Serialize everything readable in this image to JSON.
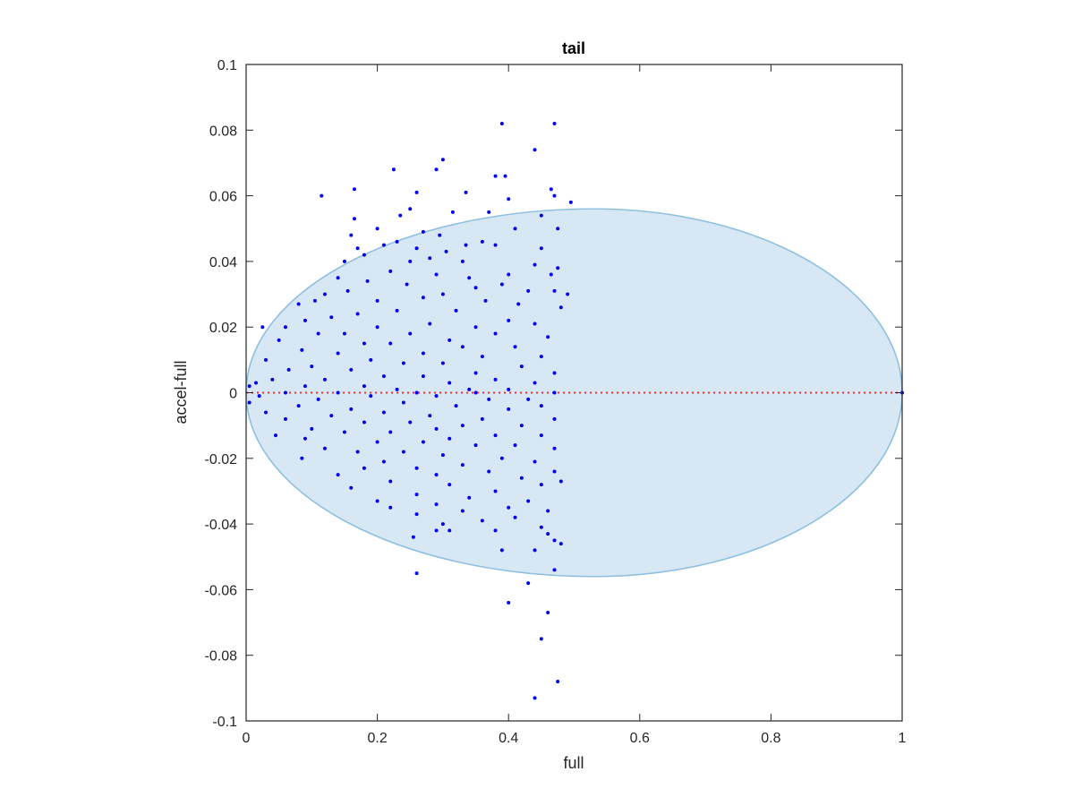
{
  "chart_data": {
    "type": "scatter",
    "title": "tail",
    "xlabel": "full",
    "ylabel": "accel-full",
    "xlim": [
      0,
      1
    ],
    "ylim": [
      -0.1,
      0.1
    ],
    "xticks": [
      "0",
      "0.2",
      "0.4",
      "0.6",
      "0.8",
      "1"
    ],
    "yticks": [
      "-0.1",
      "-0.08",
      "-0.06",
      "-0.04",
      "-0.02",
      "0",
      "0.02",
      "0.04",
      "0.06",
      "0.08",
      "0.1"
    ],
    "grid": false,
    "colors": {
      "points": "#0000ee",
      "ellipse_fill": "#d7e8f4",
      "ellipse_edge": "#8fc0e0",
      "reference_line": "#ff2a2a",
      "axes": "#262626"
    },
    "ellipse": {
      "x_range": [
        0,
        1
      ],
      "y_range": [
        -0.056,
        0.056
      ],
      "x_peak": 0.53
    },
    "reference_line": {
      "y": 0,
      "x_range": [
        0,
        1
      ],
      "style": "dotted"
    },
    "series": [
      {
        "points": [
          [
            0.39,
            0.082
          ],
          [
            0.47,
            0.082
          ],
          [
            0.44,
            0.074
          ],
          [
            0.3,
            0.071
          ],
          [
            0.29,
            0.068
          ],
          [
            0.225,
            0.068
          ],
          [
            0.38,
            0.066
          ],
          [
            0.395,
            0.066
          ],
          [
            0.165,
            0.062
          ],
          [
            0.26,
            0.061
          ],
          [
            0.465,
            0.062
          ],
          [
            0.335,
            0.061
          ],
          [
            0.47,
            0.06
          ],
          [
            0.115,
            0.06
          ],
          [
            0.4,
            0.059
          ],
          [
            0.495,
            0.058
          ],
          [
            0.25,
            0.056
          ],
          [
            0.235,
            0.054
          ],
          [
            0.37,
            0.055
          ],
          [
            0.315,
            0.055
          ],
          [
            0.165,
            0.053
          ],
          [
            0.45,
            0.054
          ],
          [
            0.2,
            0.05
          ],
          [
            0.16,
            0.048
          ],
          [
            0.475,
            0.05
          ],
          [
            0.27,
            0.049
          ],
          [
            0.41,
            0.05
          ],
          [
            0.295,
            0.048
          ],
          [
            0.17,
            0.044
          ],
          [
            0.18,
            0.042
          ],
          [
            0.38,
            0.045
          ],
          [
            0.475,
            0.038
          ],
          [
            0.44,
            0.039
          ],
          [
            0.36,
            0.046
          ],
          [
            0.335,
            0.045
          ],
          [
            0.23,
            0.046
          ],
          [
            0.305,
            0.043
          ],
          [
            0.26,
            0.044
          ],
          [
            0.21,
            0.045
          ],
          [
            0.25,
            0.04
          ],
          [
            0.33,
            0.04
          ],
          [
            0.28,
            0.041
          ],
          [
            0.45,
            0.044
          ],
          [
            0.22,
            0.037
          ],
          [
            0.15,
            0.04
          ],
          [
            0.14,
            0.035
          ],
          [
            0.465,
            0.036
          ],
          [
            0.4,
            0.036
          ],
          [
            0.34,
            0.035
          ],
          [
            0.29,
            0.036
          ],
          [
            0.35,
            0.032
          ],
          [
            0.245,
            0.033
          ],
          [
            0.185,
            0.034
          ],
          [
            0.39,
            0.033
          ],
          [
            0.47,
            0.031
          ],
          [
            0.12,
            0.03
          ],
          [
            0.155,
            0.031
          ],
          [
            0.43,
            0.031
          ],
          [
            0.49,
            0.03
          ],
          [
            0.3,
            0.03
          ],
          [
            0.27,
            0.029
          ],
          [
            0.105,
            0.028
          ],
          [
            0.08,
            0.027
          ],
          [
            0.2,
            0.028
          ],
          [
            0.365,
            0.028
          ],
          [
            0.415,
            0.027
          ],
          [
            0.48,
            0.026
          ],
          [
            0.32,
            0.025
          ],
          [
            0.23,
            0.025
          ],
          [
            0.17,
            0.024
          ],
          [
            0.13,
            0.023
          ],
          [
            0.09,
            0.022
          ],
          [
            0.4,
            0.022
          ],
          [
            0.44,
            0.021
          ],
          [
            0.28,
            0.021
          ],
          [
            0.06,
            0.02
          ],
          [
            0.2,
            0.02
          ],
          [
            0.35,
            0.02
          ],
          [
            0.025,
            0.02
          ],
          [
            0.11,
            0.018
          ],
          [
            0.15,
            0.018
          ],
          [
            0.25,
            0.018
          ],
          [
            0.38,
            0.018
          ],
          [
            0.46,
            0.017
          ],
          [
            0.31,
            0.016
          ],
          [
            0.05,
            0.016
          ],
          [
            0.18,
            0.015
          ],
          [
            0.22,
            0.015
          ],
          [
            0.33,
            0.014
          ],
          [
            0.41,
            0.014
          ],
          [
            0.085,
            0.013
          ],
          [
            0.14,
            0.012
          ],
          [
            0.27,
            0.012
          ],
          [
            0.36,
            0.011
          ],
          [
            0.45,
            0.011
          ],
          [
            0.03,
            0.01
          ],
          [
            0.19,
            0.01
          ],
          [
            0.24,
            0.009
          ],
          [
            0.3,
            0.009
          ],
          [
            0.1,
            0.008
          ],
          [
            0.42,
            0.008
          ],
          [
            0.065,
            0.007
          ],
          [
            0.16,
            0.007
          ],
          [
            0.35,
            0.006
          ],
          [
            0.47,
            0.006
          ],
          [
            0.21,
            0.005
          ],
          [
            0.27,
            0.005
          ],
          [
            0.12,
            0.004
          ],
          [
            0.04,
            0.004
          ],
          [
            0.38,
            0.004
          ],
          [
            0.015,
            0.003
          ],
          [
            0.31,
            0.003
          ],
          [
            0.44,
            0.003
          ],
          [
            0.09,
            0.002
          ],
          [
            0.18,
            0.002
          ],
          [
            0.005,
            0.002
          ],
          [
            0.23,
            0.001
          ],
          [
            0.34,
            0.001
          ],
          [
            0.4,
            0.001
          ],
          [
            0.14,
            0.0
          ],
          [
            0.26,
            0.0
          ],
          [
            0.47,
            0.0
          ],
          [
            0.06,
            0.0
          ],
          [
            0.35,
            0.0
          ],
          [
            0.02,
            -0.001
          ],
          [
            0.19,
            -0.001
          ],
          [
            0.29,
            -0.001
          ],
          [
            0.43,
            -0.002
          ],
          [
            0.11,
            -0.002
          ],
          [
            0.37,
            -0.002
          ],
          [
            0.005,
            -0.003
          ],
          [
            0.24,
            -0.003
          ],
          [
            0.08,
            -0.004
          ],
          [
            0.32,
            -0.004
          ],
          [
            0.45,
            -0.004
          ],
          [
            0.16,
            -0.005
          ],
          [
            0.4,
            -0.005
          ],
          [
            0.03,
            -0.006
          ],
          [
            0.21,
            -0.006
          ],
          [
            0.28,
            -0.007
          ],
          [
            0.13,
            -0.007
          ],
          [
            0.36,
            -0.008
          ],
          [
            0.47,
            -0.008
          ],
          [
            0.06,
            -0.008
          ],
          [
            0.25,
            -0.009
          ],
          [
            0.18,
            -0.009
          ],
          [
            0.33,
            -0.01
          ],
          [
            0.42,
            -0.01
          ],
          [
            0.1,
            -0.011
          ],
          [
            0.29,
            -0.011
          ],
          [
            0.15,
            -0.012
          ],
          [
            0.22,
            -0.012
          ],
          [
            0.38,
            -0.013
          ],
          [
            0.45,
            -0.013
          ],
          [
            0.045,
            -0.013
          ],
          [
            0.09,
            -0.014
          ],
          [
            0.31,
            -0.014
          ],
          [
            0.2,
            -0.015
          ],
          [
            0.27,
            -0.015
          ],
          [
            0.41,
            -0.016
          ],
          [
            0.35,
            -0.016
          ],
          [
            0.12,
            -0.017
          ],
          [
            0.47,
            -0.017
          ],
          [
            0.24,
            -0.018
          ],
          [
            0.17,
            -0.018
          ],
          [
            0.3,
            -0.019
          ],
          [
            0.085,
            -0.02
          ],
          [
            0.39,
            -0.02
          ],
          [
            0.44,
            -0.021
          ],
          [
            0.21,
            -0.021
          ],
          [
            0.33,
            -0.022
          ],
          [
            0.26,
            -0.023
          ],
          [
            0.18,
            -0.023
          ],
          [
            0.47,
            -0.024
          ],
          [
            0.37,
            -0.024
          ],
          [
            0.14,
            -0.025
          ],
          [
            0.29,
            -0.025
          ],
          [
            0.42,
            -0.026
          ],
          [
            0.22,
            -0.027
          ],
          [
            0.31,
            -0.028
          ],
          [
            0.45,
            -0.028
          ],
          [
            0.16,
            -0.029
          ],
          [
            0.38,
            -0.03
          ],
          [
            0.26,
            -0.031
          ],
          [
            0.48,
            -0.027
          ],
          [
            0.34,
            -0.032
          ],
          [
            0.2,
            -0.033
          ],
          [
            0.43,
            -0.033
          ],
          [
            0.29,
            -0.034
          ],
          [
            0.4,
            -0.035
          ],
          [
            0.22,
            -0.035
          ],
          [
            0.46,
            -0.036
          ],
          [
            0.33,
            -0.036
          ],
          [
            0.26,
            -0.037
          ],
          [
            0.41,
            -0.038
          ],
          [
            0.36,
            -0.039
          ],
          [
            0.3,
            -0.04
          ],
          [
            0.45,
            -0.041
          ],
          [
            0.38,
            -0.042
          ],
          [
            0.46,
            -0.043
          ],
          [
            0.29,
            -0.042
          ],
          [
            0.48,
            -0.046
          ],
          [
            0.31,
            -0.042
          ],
          [
            0.47,
            -0.045
          ],
          [
            0.255,
            -0.044
          ],
          [
            0.39,
            -0.048
          ],
          [
            0.44,
            -0.048
          ],
          [
            0.26,
            -0.055
          ],
          [
            0.47,
            -0.054
          ],
          [
            0.43,
            -0.058
          ],
          [
            0.4,
            -0.064
          ],
          [
            0.46,
            -0.067
          ],
          [
            0.45,
            -0.075
          ],
          [
            0.475,
            -0.088
          ],
          [
            0.44,
            -0.093
          ],
          [
            1.0,
            0.0
          ]
        ]
      }
    ]
  }
}
